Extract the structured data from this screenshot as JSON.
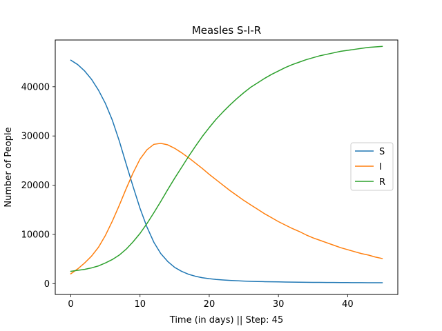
{
  "chart_data": {
    "type": "line",
    "title": "Measles S-I-R",
    "xlabel": "Time (in days) || Step: 45",
    "ylabel": "Number of People",
    "xlim": [
      -2.25,
      47.25
    ],
    "ylim": [
      -2200,
      49500
    ],
    "xticks": [
      0,
      10,
      20,
      30,
      40
    ],
    "yticks": [
      0,
      10000,
      20000,
      30000,
      40000
    ],
    "grid": false,
    "legend_position": "center-right",
    "x": [
      0,
      1,
      2,
      3,
      4,
      5,
      6,
      7,
      8,
      9,
      10,
      11,
      12,
      13,
      14,
      15,
      16,
      17,
      18,
      19,
      20,
      21,
      22,
      23,
      24,
      25,
      26,
      27,
      28,
      29,
      30,
      31,
      32,
      33,
      34,
      35,
      36,
      37,
      38,
      39,
      40,
      41,
      42,
      43,
      44,
      45
    ],
    "series": [
      {
        "name": "S",
        "color": "#1f77b4",
        "values": [
          45400,
          44500,
          43200,
          41500,
          39300,
          36600,
          33200,
          29000,
          24300,
          19700,
          15300,
          11500,
          8400,
          6100,
          4500,
          3300,
          2500,
          1900,
          1500,
          1200,
          1000,
          850,
          740,
          650,
          580,
          520,
          470,
          430,
          400,
          370,
          350,
          330,
          310,
          290,
          275,
          260,
          250,
          240,
          230,
          220,
          210,
          200,
          195,
          190,
          185,
          180
        ]
      },
      {
        "name": "I",
        "color": "#ff7f0e",
        "values": [
          2000,
          3000,
          4200,
          5600,
          7400,
          9800,
          12700,
          15900,
          19300,
          22500,
          25300,
          27200,
          28300,
          28500,
          28200,
          27500,
          26600,
          25600,
          24500,
          23400,
          22200,
          21100,
          20000,
          18900,
          17900,
          16900,
          16000,
          15100,
          14200,
          13400,
          12600,
          11900,
          11200,
          10600,
          9900,
          9300,
          8800,
          8300,
          7800,
          7300,
          6900,
          6500,
          6100,
          5800,
          5400,
          5100
        ]
      },
      {
        "name": "R",
        "color": "#2ca02c",
        "values": [
          2500,
          2700,
          2900,
          3200,
          3600,
          4200,
          4900,
          5800,
          7000,
          8500,
          10200,
          12200,
          14400,
          16700,
          19100,
          21400,
          23600,
          25800,
          27900,
          29900,
          31700,
          33400,
          34900,
          36300,
          37600,
          38800,
          39900,
          40800,
          41700,
          42500,
          43200,
          43900,
          44500,
          45000,
          45500,
          45900,
          46300,
          46600,
          46900,
          47200,
          47400,
          47600,
          47800,
          48000,
          48100,
          48200
        ]
      }
    ]
  }
}
